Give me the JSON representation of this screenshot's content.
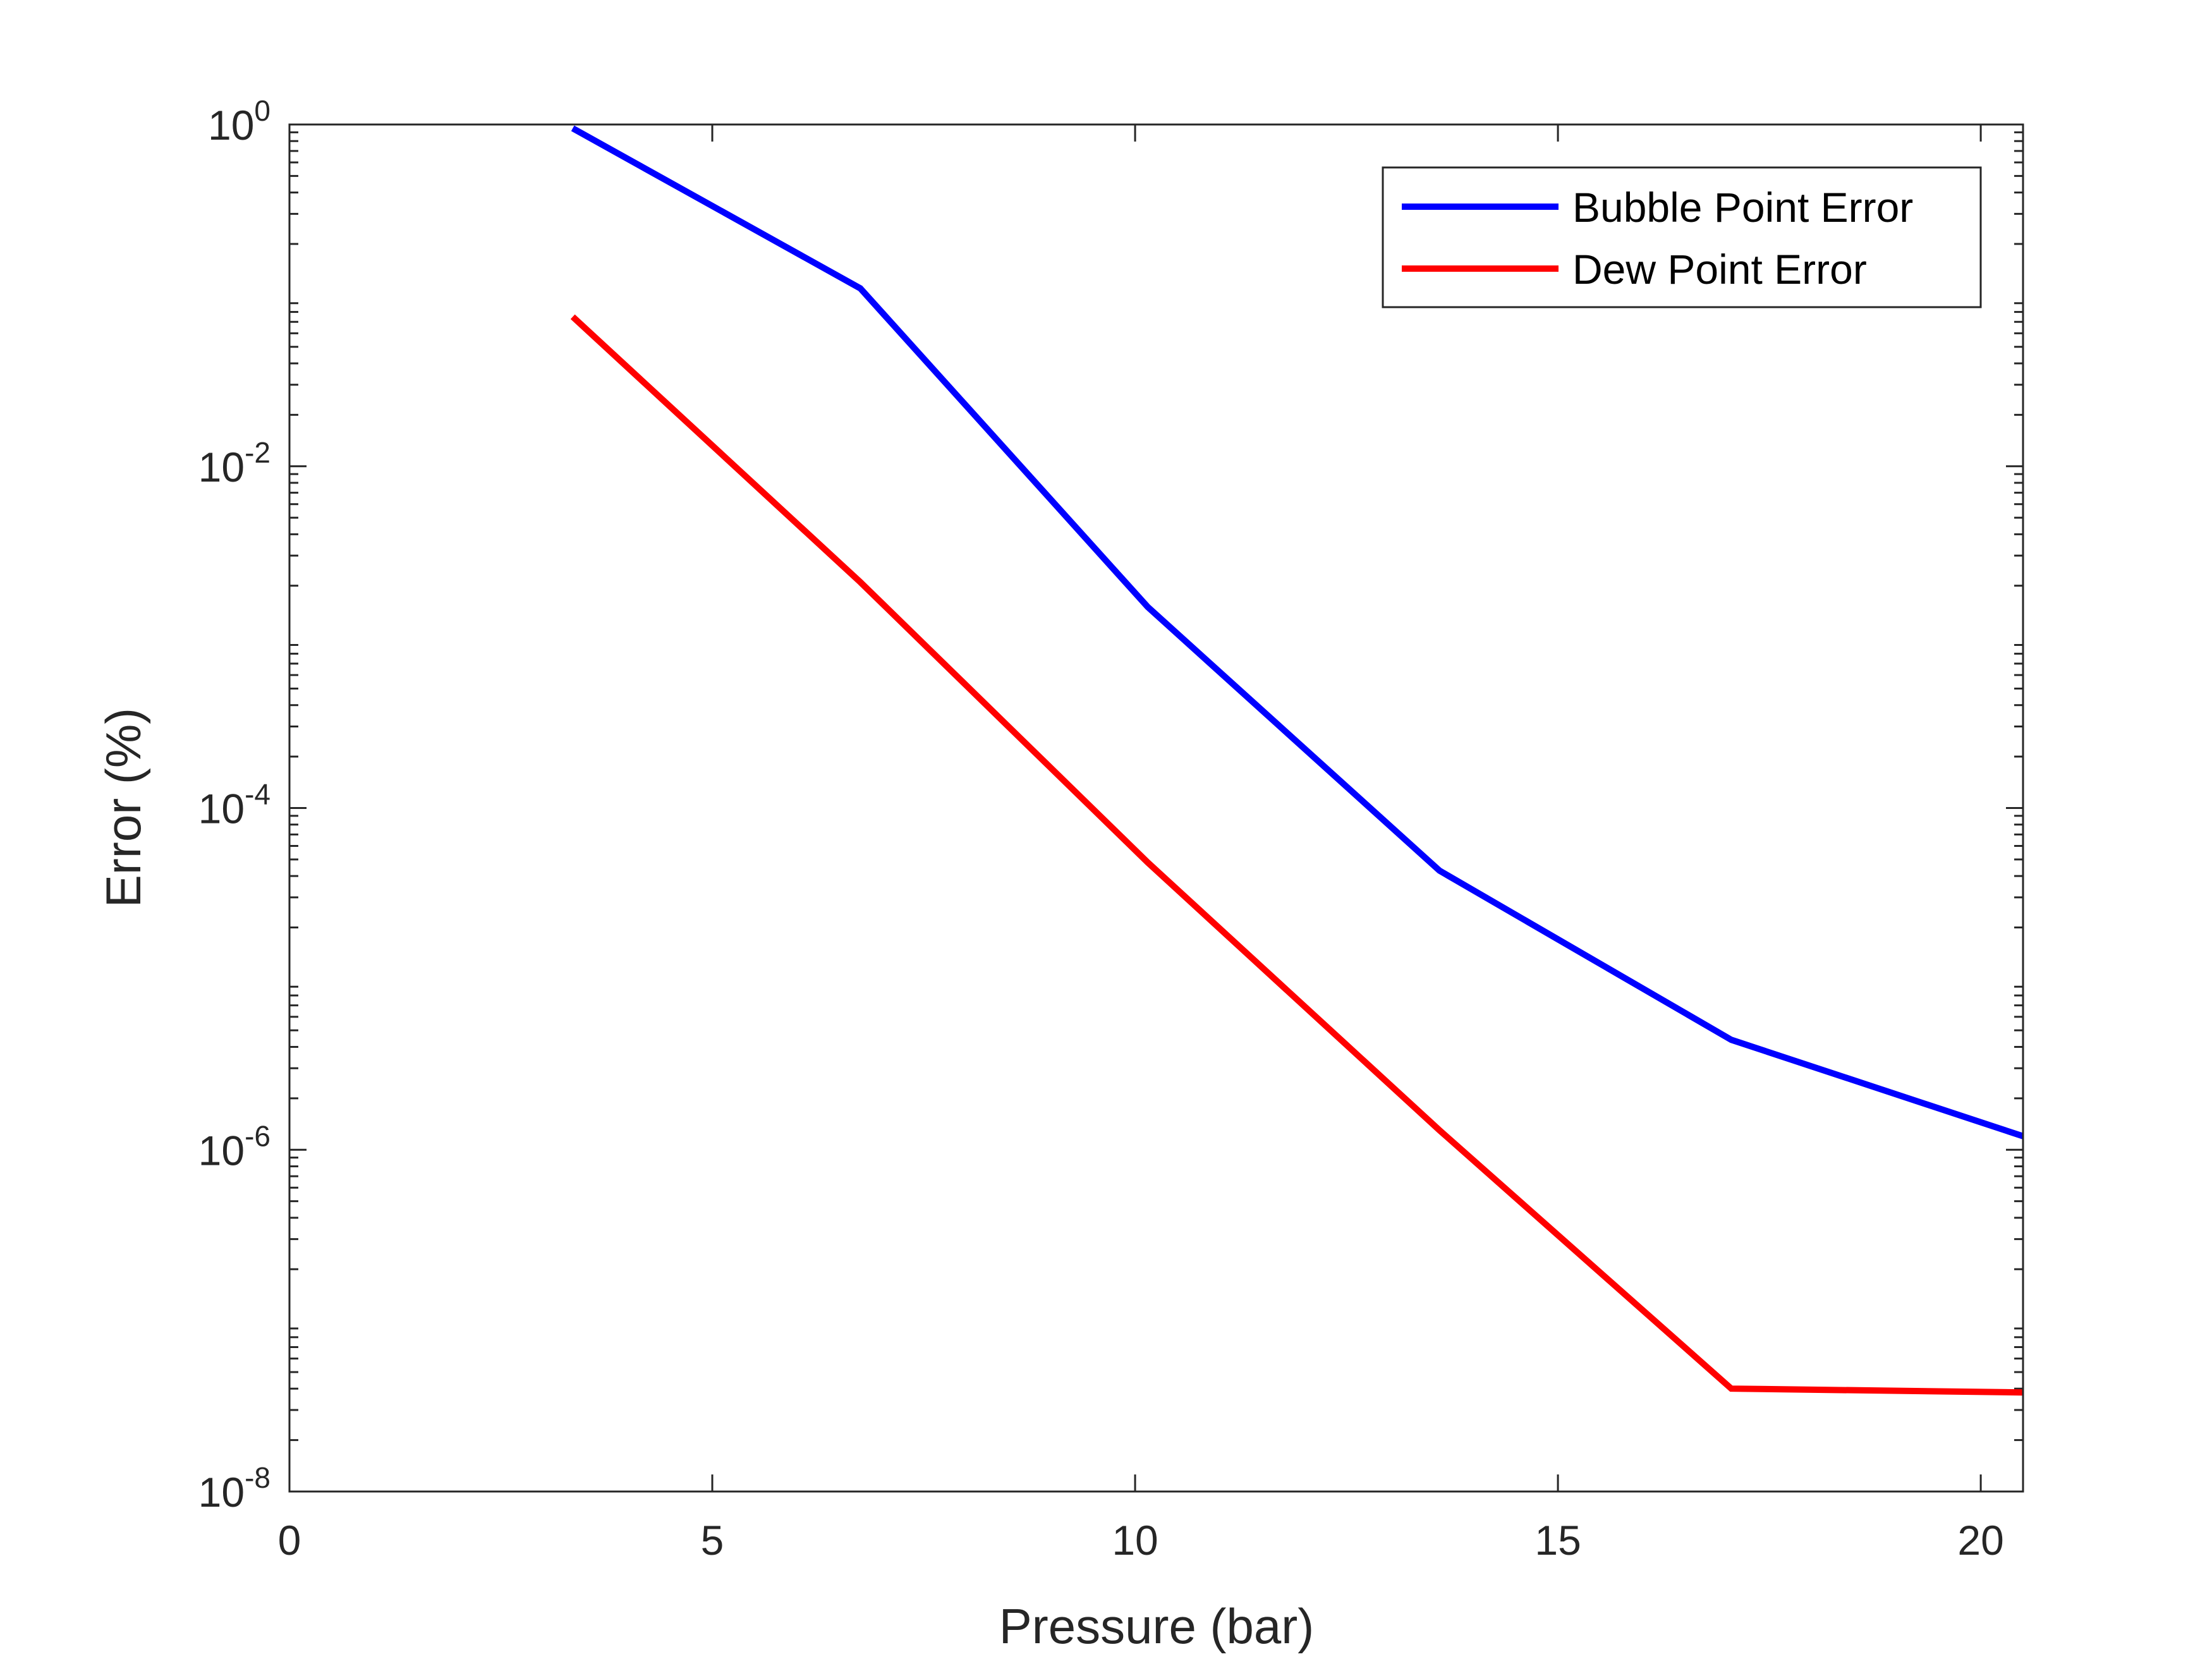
{
  "chart_data": {
    "type": "line",
    "title": "",
    "xlabel": "Pressure (bar)",
    "ylabel": "Error (%)",
    "xlim": [
      0,
      20.5
    ],
    "ylim": [
      1e-08,
      1
    ],
    "yscale": "log",
    "grid": false,
    "legend_position": "top-right",
    "x_ticks": [
      0,
      5,
      10,
      15,
      20
    ],
    "y_ticks": [
      {
        "base": "10",
        "exp": "0",
        "value": 1
      },
      {
        "base": "10",
        "exp": "-2",
        "value": 0.01
      },
      {
        "base": "10",
        "exp": "-4",
        "value": 0.0001
      },
      {
        "base": "10",
        "exp": "-6",
        "value": 1e-06
      },
      {
        "base": "10",
        "exp": "-8",
        "value": 1e-08
      }
    ],
    "series": [
      {
        "name": "Bubble Point Error",
        "color": "#0000ff",
        "x": [
          3.35,
          6.75,
          10.15,
          13.6,
          17.05,
          20.5
        ],
        "y": [
          0.95,
          0.11,
          0.0015,
          4.3e-05,
          4.4e-06,
          1.2e-06
        ]
      },
      {
        "name": "Dew Point Error",
        "color": "#ff0000",
        "x": [
          3.35,
          6.75,
          10.15,
          13.6,
          17.05,
          20.5
        ],
        "y": [
          0.075,
          0.0021,
          4.8e-05,
          1.3e-06,
          4e-08,
          3.8e-08
        ]
      }
    ]
  }
}
